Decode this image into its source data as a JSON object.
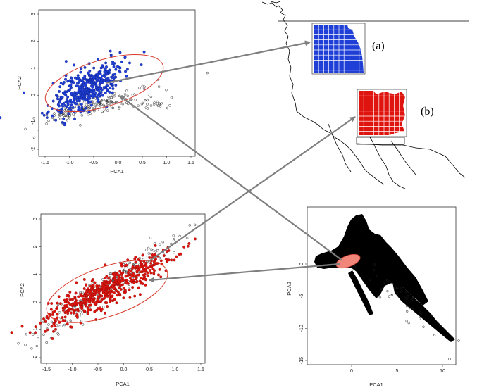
{
  "colors": {
    "blue": "#1f3fd6",
    "red": "#e0140e",
    "ellipse": "#d93a2c",
    "salmon": "#f2867a",
    "arrow": "#7f7f7f",
    "ink": "#000000"
  },
  "labels": {
    "a": "(a)",
    "b": "(b)"
  },
  "plots": {
    "top_left": {
      "xlabel": "PCA1",
      "ylabel": "PCA2",
      "xticks": [
        "-1.5",
        "-1.0",
        "-0.5",
        "0.0",
        "0.5",
        "1.0",
        "1.5"
      ],
      "yticks": [
        "-2",
        "-1",
        "0",
        "1",
        "2",
        "3"
      ],
      "highlight": "blue"
    },
    "bottom_left": {
      "xlabel": "PCA1",
      "ylabel": "PCA2",
      "xticks": [
        "-1.5",
        "-1.0",
        "-0.5",
        "0.0",
        "0.5",
        "1.0",
        "1.5"
      ],
      "yticks": [
        "-2",
        "-1",
        "0",
        "1",
        "2",
        "3"
      ],
      "highlight": "red"
    },
    "bottom_right": {
      "xlabel": "PCA1",
      "ylabel": "PCA2",
      "xticks": [
        "0",
        "5",
        "10"
      ],
      "yticks": [
        "-15",
        "-10",
        "-5",
        "0"
      ]
    }
  }
}
